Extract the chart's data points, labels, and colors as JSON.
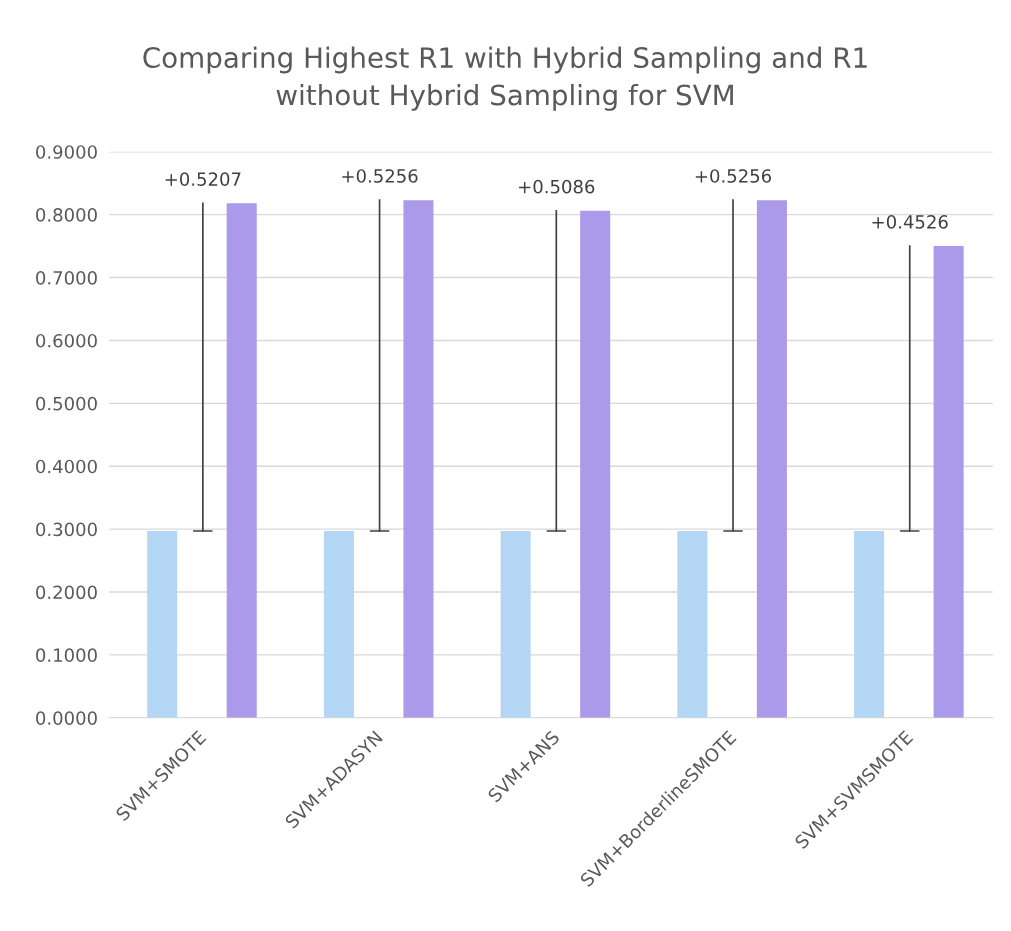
{
  "chart_data": {
    "type": "bar",
    "title": "Comparing Highest R1 with Hybrid Sampling and R1\nwithout Hybrid Sampling for SVM",
    "categories": [
      "SVM+SMOTE",
      "SVM+ADASYN",
      "SVM+ANS",
      "SVM+BorderlineSMOTE",
      "SVM+SVMSMOTE"
    ],
    "series": [
      {
        "color": "#b4d6f5",
        "values": [
          0.297,
          0.297,
          0.297,
          0.297,
          0.297
        ]
      },
      {
        "color": "#ab9aea",
        "values": [
          0.818,
          0.823,
          0.806,
          0.823,
          0.75
        ]
      }
    ],
    "annotations": [
      "+0.5207",
      "+0.5256",
      "+0.5086",
      "+0.5256",
      "+0.4526"
    ],
    "ylim": [
      0,
      0.9
    ],
    "yticks": [
      {
        "value": 0,
        "label": "0.0000"
      },
      {
        "value": 0.1,
        "label": "0.1000"
      },
      {
        "value": 0.2,
        "label": "0.2000"
      },
      {
        "value": 0.3,
        "label": "0.3000"
      },
      {
        "value": 0.4,
        "label": "0.4000"
      },
      {
        "value": 0.5,
        "label": "0.5000"
      },
      {
        "value": 0.6,
        "label": "0.6000"
      },
      {
        "value": 0.7,
        "label": "0.7000"
      },
      {
        "value": 0.8,
        "label": "0.8000"
      },
      {
        "value": 0.9,
        "label": "0.9000"
      }
    ],
    "grid": "y",
    "legend": false
  }
}
